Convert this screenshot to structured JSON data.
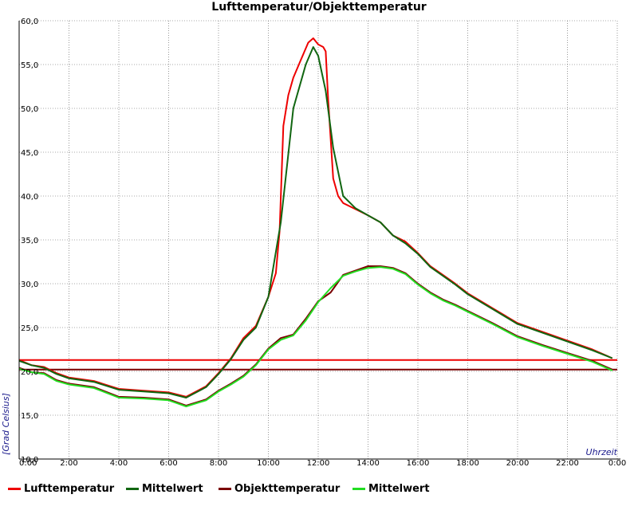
{
  "chart_data": {
    "type": "line",
    "title": "Lufttemperatur/Objekttemperatur",
    "xlabel": "Uhrzeit",
    "ylabel": "[Grad Celsius]",
    "xlim": [
      0,
      24
    ],
    "ylim": [
      10,
      60
    ],
    "x_ticks": [
      {
        "v": 0,
        "label": "0:00"
      },
      {
        "v": 2,
        "label": "2:00"
      },
      {
        "v": 4,
        "label": "4:00"
      },
      {
        "v": 6,
        "label": "6:00"
      },
      {
        "v": 8,
        "label": "8:00"
      },
      {
        "v": 10,
        "label": "10:00"
      },
      {
        "v": 12,
        "label": "12:00"
      },
      {
        "v": 14,
        "label": "14:00"
      },
      {
        "v": 16,
        "label": "16:00"
      },
      {
        "v": 18,
        "label": "18:00"
      },
      {
        "v": 20,
        "label": "20:00"
      },
      {
        "v": 22,
        "label": "22:00"
      },
      {
        "v": 24,
        "label": "0:00"
      }
    ],
    "y_ticks": [
      {
        "v": 10,
        "label": "10,0"
      },
      {
        "v": 15,
        "label": "15,0"
      },
      {
        "v": 20,
        "label": "20,0"
      },
      {
        "v": 25,
        "label": "25,0"
      },
      {
        "v": 30,
        "label": "30,0"
      },
      {
        "v": 35,
        "label": "35,0"
      },
      {
        "v": 40,
        "label": "40,0"
      },
      {
        "v": 45,
        "label": "45,0"
      },
      {
        "v": 50,
        "label": "50,0"
      },
      {
        "v": 55,
        "label": "55,0"
      },
      {
        "v": 60,
        "label": "60,0"
      }
    ],
    "grid": true,
    "legend_position": "bottom",
    "series": [
      {
        "name": "Lufttemperatur",
        "color": "#ee0000",
        "x": [
          0,
          0.5,
          1,
          1.5,
          2,
          3,
          4,
          5,
          6,
          6.7,
          7.5,
          8,
          8.5,
          9,
          9.5,
          10,
          10.3,
          10.45,
          10.6,
          10.8,
          11,
          11.3,
          11.6,
          11.8,
          12.0,
          12.2,
          12.3,
          12.4,
          12.6,
          12.8,
          13.0,
          13.5,
          14,
          14.5,
          15,
          15.5,
          16,
          16.5,
          17,
          17.5,
          18,
          19,
          20,
          21,
          22,
          23,
          23.8
        ],
        "y": [
          21.3,
          20.7,
          20.5,
          19.8,
          19.3,
          18.9,
          18.0,
          17.8,
          17.6,
          17.1,
          18.3,
          19.8,
          21.5,
          23.8,
          25.2,
          28.5,
          31.2,
          36.0,
          48.0,
          51.5,
          53.5,
          55.5,
          57.5,
          58.0,
          57.3,
          57.0,
          56.5,
          51.0,
          42.0,
          40.0,
          39.2,
          38.5,
          37.8,
          37.0,
          35.5,
          34.8,
          33.5,
          32.0,
          31.0,
          30.0,
          28.9,
          27.2,
          25.5,
          24.5,
          23.5,
          22.5,
          21.5
        ]
      },
      {
        "name": "Mittelwert",
        "color": "#116611",
        "x": [
          0,
          0.5,
          1,
          1.5,
          2,
          3,
          4,
          5,
          6,
          6.7,
          7.5,
          8,
          8.5,
          9,
          9.5,
          10,
          10.5,
          11,
          11.5,
          11.8,
          12.0,
          12.3,
          12.6,
          13.0,
          13.5,
          14,
          14.5,
          15,
          15.5,
          16,
          16.5,
          17,
          17.5,
          18,
          19,
          20,
          21,
          22,
          23,
          23.8
        ],
        "y": [
          21.2,
          20.7,
          20.4,
          19.7,
          19.2,
          18.8,
          17.9,
          17.7,
          17.5,
          17.0,
          18.2,
          19.7,
          21.4,
          23.6,
          25.0,
          28.5,
          37.0,
          50.0,
          55.0,
          57.0,
          56.0,
          52.0,
          45.5,
          40.0,
          38.6,
          37.8,
          37.0,
          35.5,
          34.6,
          33.4,
          31.9,
          30.9,
          29.9,
          28.8,
          27.1,
          25.4,
          24.4,
          23.4,
          22.4,
          21.5
        ]
      },
      {
        "name": "Objekttemperatur",
        "color": "#7a0000",
        "x": [
          0,
          0.5,
          1,
          1.5,
          2,
          3,
          4,
          5,
          6,
          6.7,
          7.5,
          8,
          8.5,
          9,
          9.5,
          10,
          10.5,
          11,
          11.5,
          12,
          12.5,
          13,
          13.5,
          14,
          14.5,
          15,
          15.5,
          16,
          16.5,
          17,
          17.5,
          18,
          19,
          20,
          21,
          22,
          23,
          23.8
        ],
        "y": [
          20.4,
          19.9,
          19.8,
          19.0,
          18.6,
          18.2,
          17.1,
          17.0,
          16.8,
          16.1,
          16.8,
          17.8,
          18.6,
          19.5,
          20.8,
          22.6,
          23.8,
          24.2,
          26.0,
          28.0,
          29.0,
          31.0,
          31.5,
          32.0,
          32.0,
          31.8,
          31.2,
          30.0,
          29.0,
          28.2,
          27.6,
          26.9,
          25.5,
          24.0,
          23.0,
          22.1,
          21.2,
          20.2
        ]
      },
      {
        "name": "Mittelwert",
        "color": "#22dd22",
        "x": [
          0,
          0.5,
          1,
          1.5,
          2,
          3,
          4,
          5,
          6,
          6.7,
          7.5,
          8,
          8.5,
          9,
          9.5,
          10,
          10.5,
          11,
          11.5,
          12,
          12.5,
          13,
          13.5,
          14,
          14.5,
          15,
          15.5,
          16,
          16.5,
          17,
          17.5,
          18,
          19,
          20,
          21,
          22,
          23,
          23.8
        ],
        "y": [
          20.3,
          19.9,
          19.7,
          18.9,
          18.5,
          18.1,
          17.0,
          16.9,
          16.7,
          16.0,
          16.7,
          17.7,
          18.5,
          19.4,
          20.7,
          22.5,
          23.6,
          24.1,
          25.8,
          27.9,
          29.5,
          30.9,
          31.4,
          31.8,
          31.9,
          31.7,
          31.1,
          29.9,
          28.9,
          28.1,
          27.5,
          26.8,
          25.4,
          23.9,
          22.9,
          22.0,
          21.1,
          20.1
        ]
      }
    ],
    "reference_lines": [
      {
        "y": 21.3,
        "color": "#ee0000"
      },
      {
        "y": 20.2,
        "color": "#7a0000"
      }
    ]
  },
  "legend": [
    {
      "label": "Lufttemperatur",
      "color": "#ee0000"
    },
    {
      "label": "Mittelwert",
      "color": "#116611"
    },
    {
      "label": "Objekttemperatur",
      "color": "#7a0000"
    },
    {
      "label": "Mittelwert",
      "color": "#22dd22"
    }
  ]
}
